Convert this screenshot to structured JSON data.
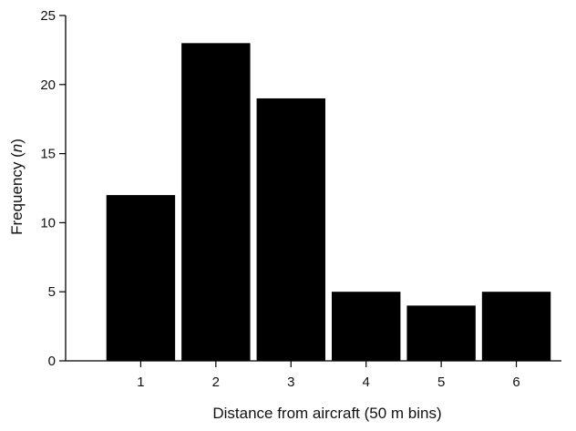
{
  "chart_data": {
    "type": "bar",
    "title": "",
    "xlabel": "Distance from aircraft (50 m bins)",
    "ylabel_main": "Frequency (",
    "ylabel_italic": "n",
    "ylabel_tail": ")",
    "categories": [
      "1",
      "2",
      "3",
      "4",
      "5",
      "6"
    ],
    "values": [
      12,
      23,
      19,
      5,
      4,
      5
    ],
    "yticks": [
      0,
      5,
      10,
      15,
      20,
      25
    ],
    "ylim": [
      0,
      25
    ],
    "grid": false,
    "bar_color": "#000000",
    "axis_color": "#000000"
  }
}
